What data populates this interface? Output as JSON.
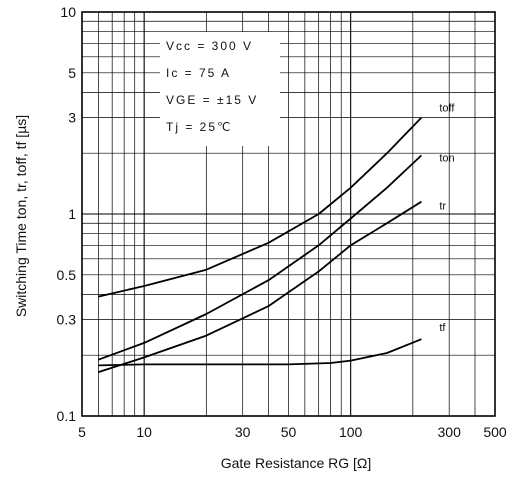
{
  "chart_data": {
    "type": "line",
    "title": "",
    "xlabel": "Gate Resistance RG [Ω]",
    "ylabel": "Switching Time ton, tr, toff, tf [µs]",
    "xscale": "log",
    "yscale": "log",
    "xlim": [
      5,
      500
    ],
    "ylim": [
      0.1,
      10
    ],
    "grid": true,
    "x_ticks": [
      "5",
      "10",
      "30",
      "50",
      "100",
      "300",
      "500"
    ],
    "y_ticks": [
      "0.1",
      "0.3",
      "0.5",
      "1",
      "3",
      "5",
      "10"
    ],
    "conditions": [
      "Vcc = 300 V",
      "Ic = 75 A",
      "VGE = ±15 V",
      "Tj = 25℃"
    ],
    "series": [
      {
        "name": "toff",
        "x": [
          6,
          10,
          20,
          40,
          70,
          100,
          150,
          220
        ],
        "y": [
          0.39,
          0.44,
          0.53,
          0.72,
          1.0,
          1.35,
          2.0,
          3.0
        ]
      },
      {
        "name": "ton",
        "x": [
          6,
          10,
          20,
          40,
          70,
          100,
          150,
          220
        ],
        "y": [
          0.19,
          0.23,
          0.32,
          0.47,
          0.7,
          0.95,
          1.35,
          1.95
        ]
      },
      {
        "name": "tr",
        "x": [
          6,
          10,
          20,
          40,
          70,
          100,
          150,
          220
        ],
        "y": [
          0.165,
          0.195,
          0.25,
          0.35,
          0.52,
          0.7,
          0.9,
          1.15
        ]
      },
      {
        "name": "tf",
        "x": [
          6,
          10,
          20,
          50,
          80,
          100,
          150,
          220
        ],
        "y": [
          0.178,
          0.18,
          0.18,
          0.18,
          0.183,
          0.188,
          0.205,
          0.24
        ]
      }
    ]
  }
}
